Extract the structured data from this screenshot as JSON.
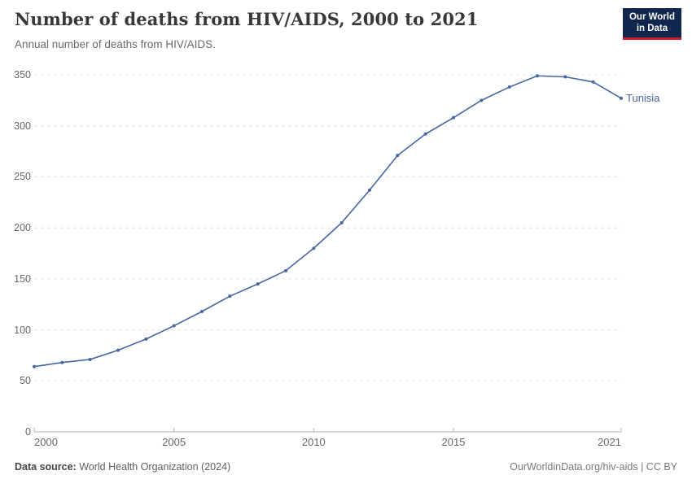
{
  "header": {
    "title": "Number of deaths from HIV/AIDS, 2000 to 2021",
    "subtitle": "Annual number of deaths from HIV/AIDS."
  },
  "logo": {
    "line1": "Our World",
    "line2": "in Data",
    "background": "#10264d",
    "accent": "#c81e28"
  },
  "chart_data": {
    "type": "line",
    "title": "Number of deaths from HIV/AIDS, 2000 to 2021",
    "x": [
      2000,
      2001,
      2002,
      2003,
      2004,
      2005,
      2006,
      2007,
      2008,
      2009,
      2010,
      2011,
      2012,
      2013,
      2014,
      2015,
      2016,
      2017,
      2018,
      2019,
      2020,
      2021
    ],
    "series": [
      {
        "name": "Tunisia",
        "values": [
          64,
          68,
          71,
          80,
          91,
          104,
          118,
          133,
          145,
          158,
          180,
          205,
          237,
          271,
          292,
          308,
          325,
          338,
          349,
          348,
          343,
          327
        ],
        "color": "#4866a2"
      }
    ],
    "xlabel": "",
    "ylabel": "",
    "xlim": [
      2000,
      2021
    ],
    "ylim": [
      0,
      350
    ],
    "yticks": [
      0,
      50,
      100,
      150,
      200,
      250,
      300,
      350
    ],
    "xticks": [
      2000,
      2005,
      2010,
      2015,
      2021
    ],
    "grid": "horizontal-dashed",
    "legend": "end-of-line-label",
    "marker": "dot"
  },
  "colors": {
    "line": "#4866a2",
    "gridline": "#e0e0e0",
    "axis": "#b3b3b3",
    "tick_label": "#666666"
  },
  "footer": {
    "source_label": "Data source:",
    "source_text": " World Health Organization (2024)",
    "link_text": "OurWorldinData.org/hiv-aids",
    "separator": " | ",
    "license_text": "CC BY"
  }
}
